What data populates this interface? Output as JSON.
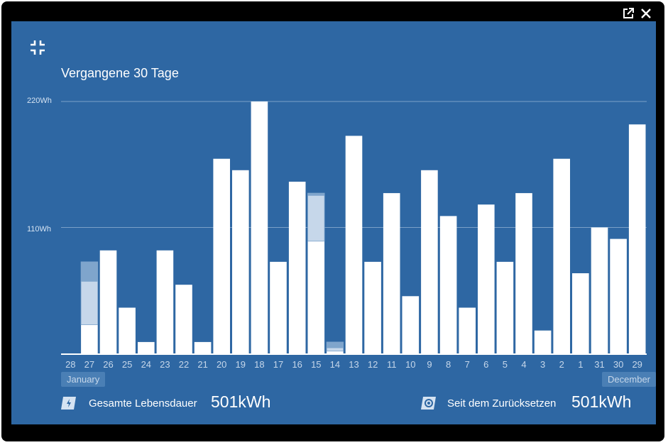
{
  "window": {
    "open_external_icon": "open-external-icon",
    "close_icon": "close-icon"
  },
  "panel": {
    "collapse_icon": "collapse-icon",
    "title": "Vergangene 30 Tage",
    "months": {
      "left": "January",
      "right": "December"
    }
  },
  "stats": {
    "lifetime": {
      "icon": "charge-icon",
      "label": "Gesamte Lebensdauer",
      "value": "501kWh"
    },
    "since_reset": {
      "icon": "reset-icon",
      "label": "Seit dem Zurücksetzen",
      "value": "501kWh"
    }
  },
  "colors": {
    "background": "#2e67a3",
    "bar": "#ffffff",
    "bar_secondary": "#c6d7ea",
    "bar_tertiary": "#7fa5cc",
    "gridline": "#7aa0c8"
  },
  "chart_data": {
    "type": "bar",
    "stacked": true,
    "categories": [
      "28",
      "27",
      "26",
      "25",
      "24",
      "23",
      "22",
      "21",
      "20",
      "19",
      "18",
      "17",
      "16",
      "15",
      "14",
      "13",
      "12",
      "11",
      "10",
      "9",
      "8",
      "7",
      "6",
      "5",
      "4",
      "3",
      "2",
      "1",
      "31",
      "30",
      "29"
    ],
    "series": [
      {
        "values": [
          0,
          25,
          90,
          40,
          10,
          90,
          60,
          10,
          170,
          160,
          220,
          80,
          150,
          98,
          2,
          190,
          80,
          140,
          50,
          160,
          120,
          40,
          130,
          80,
          140,
          20,
          170,
          70,
          110,
          100,
          200
        ]
      },
      {
        "values": [
          0,
          38,
          0,
          0,
          0,
          0,
          0,
          0,
          0,
          0,
          0,
          0,
          0,
          40,
          3,
          0,
          0,
          0,
          0,
          0,
          0,
          0,
          0,
          0,
          0,
          0,
          0,
          0,
          0,
          0,
          0
        ]
      },
      {
        "values": [
          0,
          17,
          0,
          0,
          0,
          0,
          0,
          0,
          0,
          0,
          0,
          0,
          0,
          2,
          5,
          0,
          0,
          0,
          0,
          0,
          0,
          0,
          0,
          0,
          0,
          0,
          0,
          0,
          0,
          0,
          0
        ]
      }
    ],
    "y_ticks": [
      "110Wh",
      "220Wh"
    ],
    "y_tick_values": [
      110,
      220
    ],
    "ylim": [
      0,
      220
    ],
    "grid": true
  }
}
